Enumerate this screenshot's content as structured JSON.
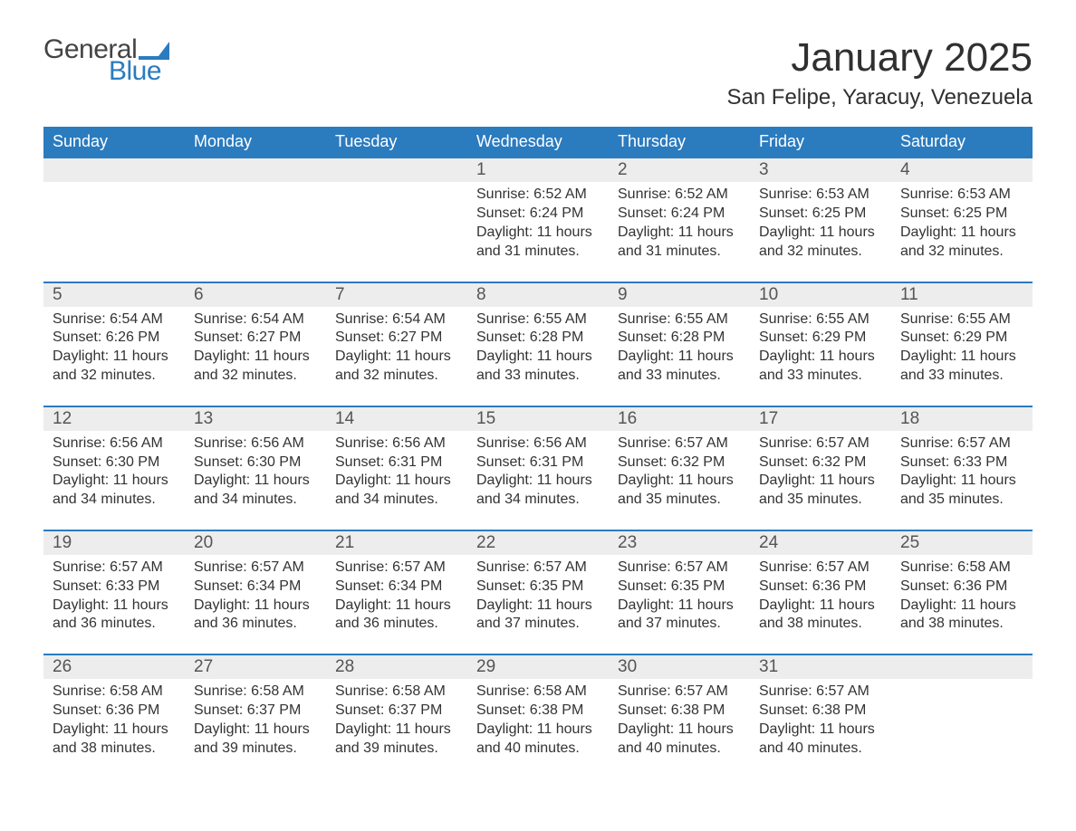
{
  "logo": {
    "general": "General",
    "blue": "Blue",
    "flag_color": "#2b7bbf"
  },
  "title": "January 2025",
  "location": "San Felipe, Yaracuy, Venezuela",
  "colors": {
    "header_bg": "#2b7bbf",
    "header_text": "#ffffff",
    "daynum_bg": "#ededed",
    "row_border": "#2b7bbf",
    "body_text": "#333333",
    "title_text": "#303030"
  },
  "weekdays": [
    "Sunday",
    "Monday",
    "Tuesday",
    "Wednesday",
    "Thursday",
    "Friday",
    "Saturday"
  ],
  "weeks": [
    [
      null,
      null,
      null,
      {
        "n": 1,
        "sunrise": "6:52 AM",
        "sunset": "6:24 PM",
        "daylight": "11 hours and 31 minutes."
      },
      {
        "n": 2,
        "sunrise": "6:52 AM",
        "sunset": "6:24 PM",
        "daylight": "11 hours and 31 minutes."
      },
      {
        "n": 3,
        "sunrise": "6:53 AM",
        "sunset": "6:25 PM",
        "daylight": "11 hours and 32 minutes."
      },
      {
        "n": 4,
        "sunrise": "6:53 AM",
        "sunset": "6:25 PM",
        "daylight": "11 hours and 32 minutes."
      }
    ],
    [
      {
        "n": 5,
        "sunrise": "6:54 AM",
        "sunset": "6:26 PM",
        "daylight": "11 hours and 32 minutes."
      },
      {
        "n": 6,
        "sunrise": "6:54 AM",
        "sunset": "6:27 PM",
        "daylight": "11 hours and 32 minutes."
      },
      {
        "n": 7,
        "sunrise": "6:54 AM",
        "sunset": "6:27 PM",
        "daylight": "11 hours and 32 minutes."
      },
      {
        "n": 8,
        "sunrise": "6:55 AM",
        "sunset": "6:28 PM",
        "daylight": "11 hours and 33 minutes."
      },
      {
        "n": 9,
        "sunrise": "6:55 AM",
        "sunset": "6:28 PM",
        "daylight": "11 hours and 33 minutes."
      },
      {
        "n": 10,
        "sunrise": "6:55 AM",
        "sunset": "6:29 PM",
        "daylight": "11 hours and 33 minutes."
      },
      {
        "n": 11,
        "sunrise": "6:55 AM",
        "sunset": "6:29 PM",
        "daylight": "11 hours and 33 minutes."
      }
    ],
    [
      {
        "n": 12,
        "sunrise": "6:56 AM",
        "sunset": "6:30 PM",
        "daylight": "11 hours and 34 minutes."
      },
      {
        "n": 13,
        "sunrise": "6:56 AM",
        "sunset": "6:30 PM",
        "daylight": "11 hours and 34 minutes."
      },
      {
        "n": 14,
        "sunrise": "6:56 AM",
        "sunset": "6:31 PM",
        "daylight": "11 hours and 34 minutes."
      },
      {
        "n": 15,
        "sunrise": "6:56 AM",
        "sunset": "6:31 PM",
        "daylight": "11 hours and 34 minutes."
      },
      {
        "n": 16,
        "sunrise": "6:57 AM",
        "sunset": "6:32 PM",
        "daylight": "11 hours and 35 minutes."
      },
      {
        "n": 17,
        "sunrise": "6:57 AM",
        "sunset": "6:32 PM",
        "daylight": "11 hours and 35 minutes."
      },
      {
        "n": 18,
        "sunrise": "6:57 AM",
        "sunset": "6:33 PM",
        "daylight": "11 hours and 35 minutes."
      }
    ],
    [
      {
        "n": 19,
        "sunrise": "6:57 AM",
        "sunset": "6:33 PM",
        "daylight": "11 hours and 36 minutes."
      },
      {
        "n": 20,
        "sunrise": "6:57 AM",
        "sunset": "6:34 PM",
        "daylight": "11 hours and 36 minutes."
      },
      {
        "n": 21,
        "sunrise": "6:57 AM",
        "sunset": "6:34 PM",
        "daylight": "11 hours and 36 minutes."
      },
      {
        "n": 22,
        "sunrise": "6:57 AM",
        "sunset": "6:35 PM",
        "daylight": "11 hours and 37 minutes."
      },
      {
        "n": 23,
        "sunrise": "6:57 AM",
        "sunset": "6:35 PM",
        "daylight": "11 hours and 37 minutes."
      },
      {
        "n": 24,
        "sunrise": "6:57 AM",
        "sunset": "6:36 PM",
        "daylight": "11 hours and 38 minutes."
      },
      {
        "n": 25,
        "sunrise": "6:58 AM",
        "sunset": "6:36 PM",
        "daylight": "11 hours and 38 minutes."
      }
    ],
    [
      {
        "n": 26,
        "sunrise": "6:58 AM",
        "sunset": "6:36 PM",
        "daylight": "11 hours and 38 minutes."
      },
      {
        "n": 27,
        "sunrise": "6:58 AM",
        "sunset": "6:37 PM",
        "daylight": "11 hours and 39 minutes."
      },
      {
        "n": 28,
        "sunrise": "6:58 AM",
        "sunset": "6:37 PM",
        "daylight": "11 hours and 39 minutes."
      },
      {
        "n": 29,
        "sunrise": "6:58 AM",
        "sunset": "6:38 PM",
        "daylight": "11 hours and 40 minutes."
      },
      {
        "n": 30,
        "sunrise": "6:57 AM",
        "sunset": "6:38 PM",
        "daylight": "11 hours and 40 minutes."
      },
      {
        "n": 31,
        "sunrise": "6:57 AM",
        "sunset": "6:38 PM",
        "daylight": "11 hours and 40 minutes."
      },
      null
    ]
  ],
  "labels": {
    "sunrise": "Sunrise:",
    "sunset": "Sunset:",
    "daylight": "Daylight:"
  }
}
